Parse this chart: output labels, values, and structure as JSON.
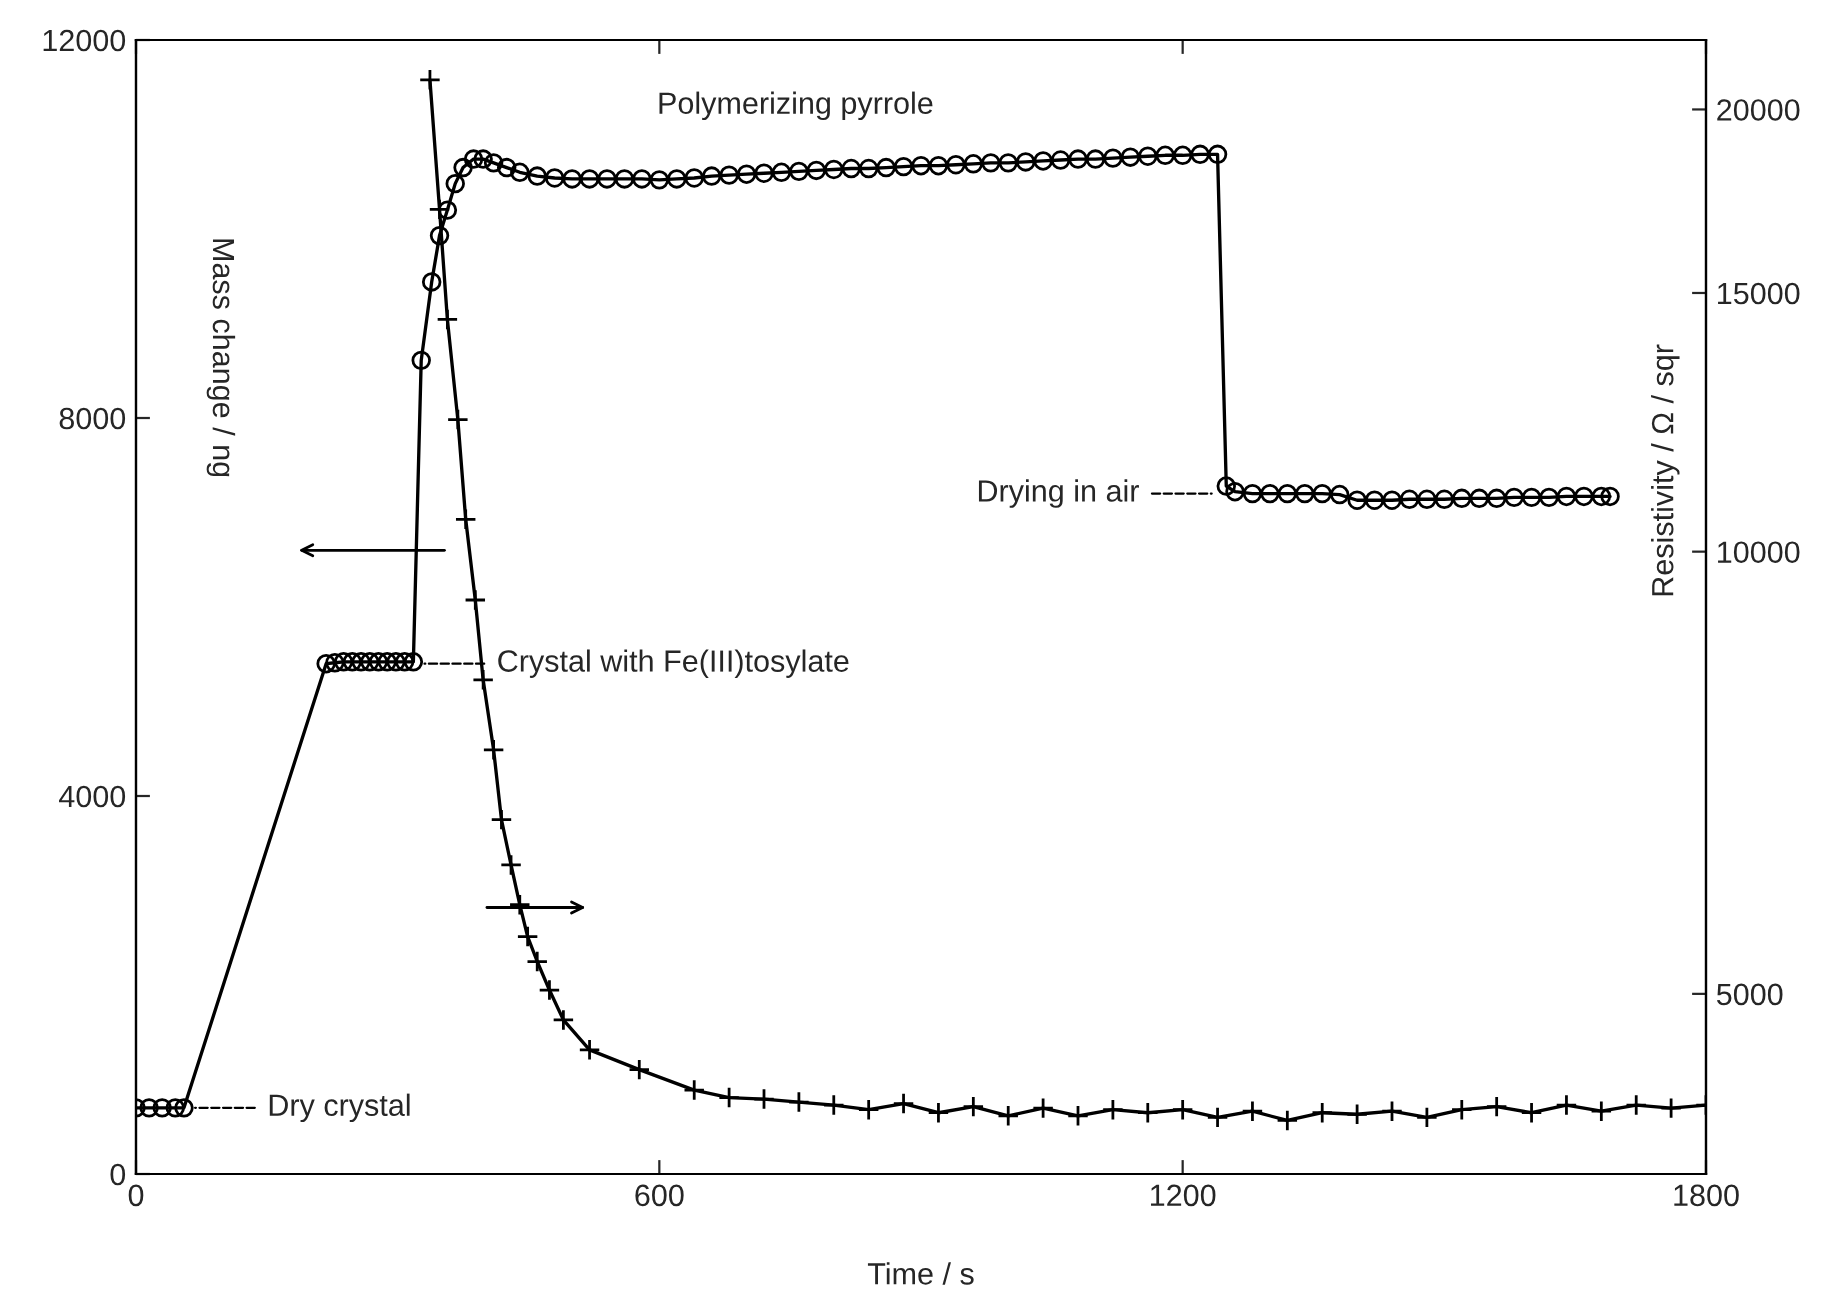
{
  "chart_data": {
    "type": "line",
    "xlabel": "Time / s",
    "ylabel": "Mass change / ng",
    "y2label": "Resistivity / Ω / sqr",
    "xlim": [
      0,
      1800
    ],
    "xticks": [
      0,
      600,
      1200,
      1800
    ],
    "ylim": [
      0,
      12000
    ],
    "yticks": [
      0,
      4000,
      8000,
      12000
    ],
    "y2lim": [
      3770,
      22300
    ],
    "y2ticks": [
      5000,
      10000,
      15000,
      20000
    ],
    "log": "y2",
    "grid": false,
    "legend": false,
    "series": [
      {
        "color": "#000000",
        "marker": "circle",
        "x": [
          0,
          15,
          30,
          45,
          55,
          218,
          228,
          238,
          248,
          258,
          268,
          278,
          288,
          298,
          308,
          318,
          327,
          339,
          348,
          357,
          366,
          375,
          387,
          398,
          410,
          425,
          440,
          460,
          480,
          500,
          520,
          540,
          560,
          580,
          600,
          620,
          640,
          660,
          680,
          700,
          720,
          740,
          760,
          780,
          800,
          820,
          840,
          860,
          880,
          900,
          920,
          940,
          960,
          980,
          1000,
          1020,
          1040,
          1060,
          1080,
          1100,
          1120,
          1140,
          1160,
          1180,
          1200,
          1220,
          1240,
          1250,
          1260,
          1280,
          1300,
          1320,
          1340,
          1360,
          1380,
          1400,
          1420,
          1440,
          1460,
          1480,
          1500,
          1520,
          1540,
          1560,
          1580,
          1600,
          1620,
          1640,
          1660,
          1680,
          1690
        ],
        "values": [
          700,
          700,
          700,
          700,
          700,
          5400,
          5410,
          5420,
          5420,
          5420,
          5420,
          5420,
          5420,
          5420,
          5420,
          5420,
          8610,
          9440,
          9930,
          10200,
          10480,
          10650,
          10740,
          10740,
          10700,
          10650,
          10600,
          10560,
          10540,
          10530,
          10530,
          10530,
          10530,
          10530,
          10520,
          10530,
          10540,
          10560,
          10570,
          10580,
          10590,
          10600,
          10610,
          10620,
          10630,
          10640,
          10640,
          10650,
          10660,
          10670,
          10670,
          10680,
          10690,
          10700,
          10700,
          10710,
          10720,
          10730,
          10740,
          10740,
          10750,
          10760,
          10770,
          10780,
          10780,
          10790,
          10790,
          7280,
          7220,
          7200,
          7200,
          7200,
          7200,
          7200,
          7190,
          7130,
          7130,
          7130,
          7140,
          7140,
          7140,
          7150,
          7150,
          7150,
          7160,
          7160,
          7160,
          7170,
          7170,
          7170,
          7170
        ]
      },
      {
        "color": "#000000",
        "marker": "cross",
        "axis": "y2",
        "x": [
          337,
          348,
          357,
          369,
          378,
          389,
          398,
          410,
          419,
          430,
          440,
          449,
          460,
          474,
          490,
          520,
          577,
          640,
          680,
          720,
          760,
          800,
          840,
          880,
          920,
          960,
          1000,
          1040,
          1080,
          1120,
          1160,
          1200,
          1240,
          1280,
          1320,
          1360,
          1400,
          1440,
          1480,
          1520,
          1560,
          1600,
          1640,
          1680,
          1720,
          1760,
          1800
        ],
        "values": [
          20950,
          17100,
          14390,
          12300,
          10520,
          9270,
          8180,
          7330,
          6570,
          6120,
          5750,
          5470,
          5260,
          5030,
          4800,
          4580,
          4440,
          4300,
          4250,
          4240,
          4220,
          4200,
          4170,
          4210,
          4150,
          4190,
          4130,
          4180,
          4130,
          4170,
          4150,
          4170,
          4120,
          4160,
          4100,
          4150,
          4140,
          4160,
          4120,
          4170,
          4190,
          4150,
          4200,
          4160,
          4200,
          4180,
          4200
        ]
      }
    ],
    "annotations": [
      {
        "text": "Dry crystal",
        "x": 55,
        "y": 700
      },
      {
        "text": "Crystal with Fe(III)tosylate",
        "x": 318,
        "y": 5400
      },
      {
        "text": "Drying in air",
        "x": 1246,
        "y": 7200
      },
      "Polymerizing pyrrole"
    ]
  }
}
